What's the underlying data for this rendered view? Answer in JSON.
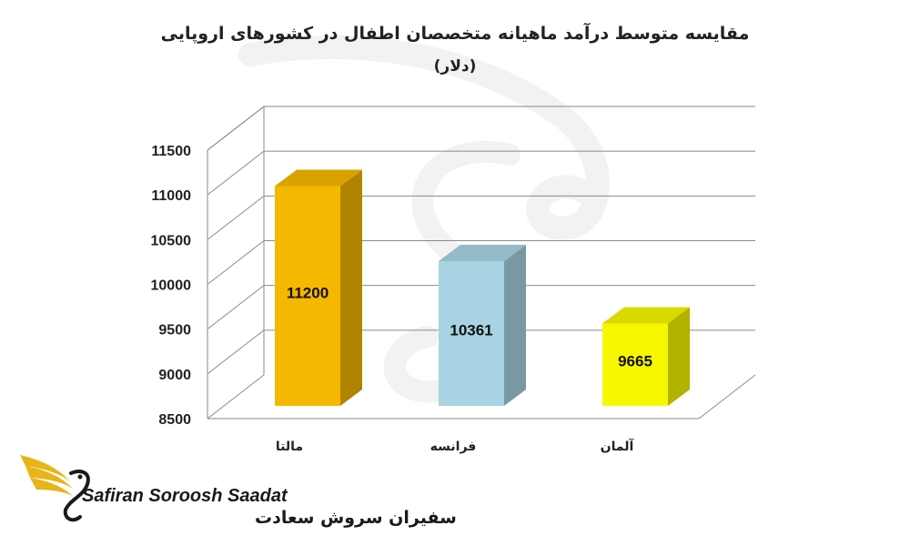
{
  "colors": {
    "malta": "#F5B800",
    "france": "#A8D3E2",
    "germany": "#F7F700",
    "grid": "#8a8a8a",
    "watermark": "#e6e6e6",
    "logo_gold": "#E7B41A"
  },
  "chart_data": {
    "type": "bar",
    "title": "مقایسه متوسط درآمد ماهیانه متخصصان اطفال در کشورهای اروپایی",
    "subtitle": "(دلار)",
    "xlabel": "",
    "ylabel": "",
    "categories": [
      "مالتا",
      "فرانسه",
      "آلمان"
    ],
    "values": [
      11200,
      10361,
      9665
    ],
    "data_labels": [
      "11200",
      "10361",
      "9665"
    ],
    "ylim": [
      8500,
      11500
    ],
    "yticks": [
      "8500",
      "9000",
      "9500",
      "10000",
      "10500",
      "11000",
      "11500"
    ],
    "grid": true,
    "style": "3d-column"
  },
  "logo": {
    "name_en": "Safiran Soroosh Saadat",
    "name_fa": "سفیران سروش سعادت"
  }
}
